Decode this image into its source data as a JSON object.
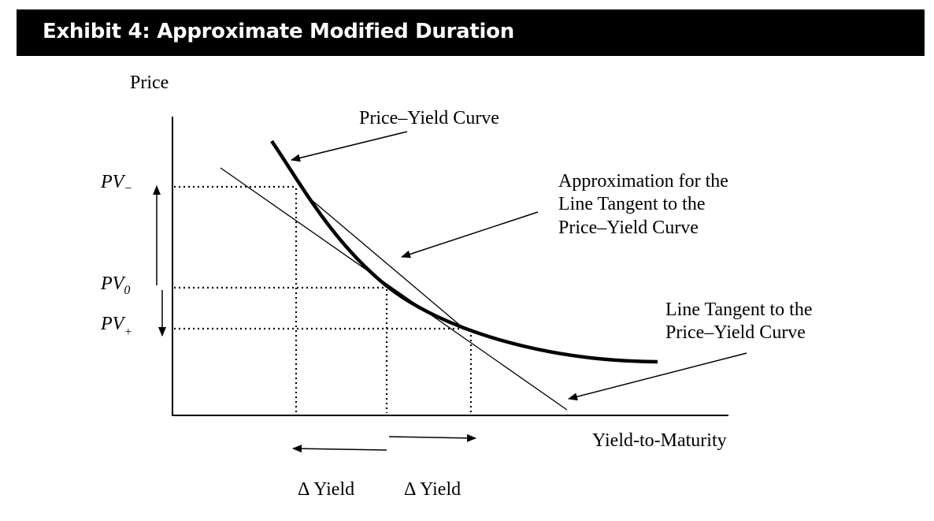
{
  "header": {
    "title": "Exhibit 4: Approximate Modified Duration"
  },
  "axes": {
    "y_label": "Price",
    "x_label": "Yield-to-Maturity"
  },
  "price_labels": {
    "pv_minus": {
      "base": "PV",
      "sub": "−"
    },
    "pv_zero": {
      "base": "PV",
      "sub": "0"
    },
    "pv_plus": {
      "base": "PV",
      "sub": "+"
    }
  },
  "annotations": {
    "price_yield_curve": "Price–Yield Curve",
    "approximation": [
      "Approximation for the",
      "Line Tangent to the",
      "Price–Yield Curve"
    ],
    "tangent_line": [
      "Line Tangent to the",
      "Price–Yield Curve"
    ]
  },
  "delta_labels": {
    "left": "Δ Yield",
    "right": "Δ Yield"
  },
  "colors": {
    "header_background": "#000000",
    "header_text": "#ffffff",
    "ink": "#000000"
  }
}
